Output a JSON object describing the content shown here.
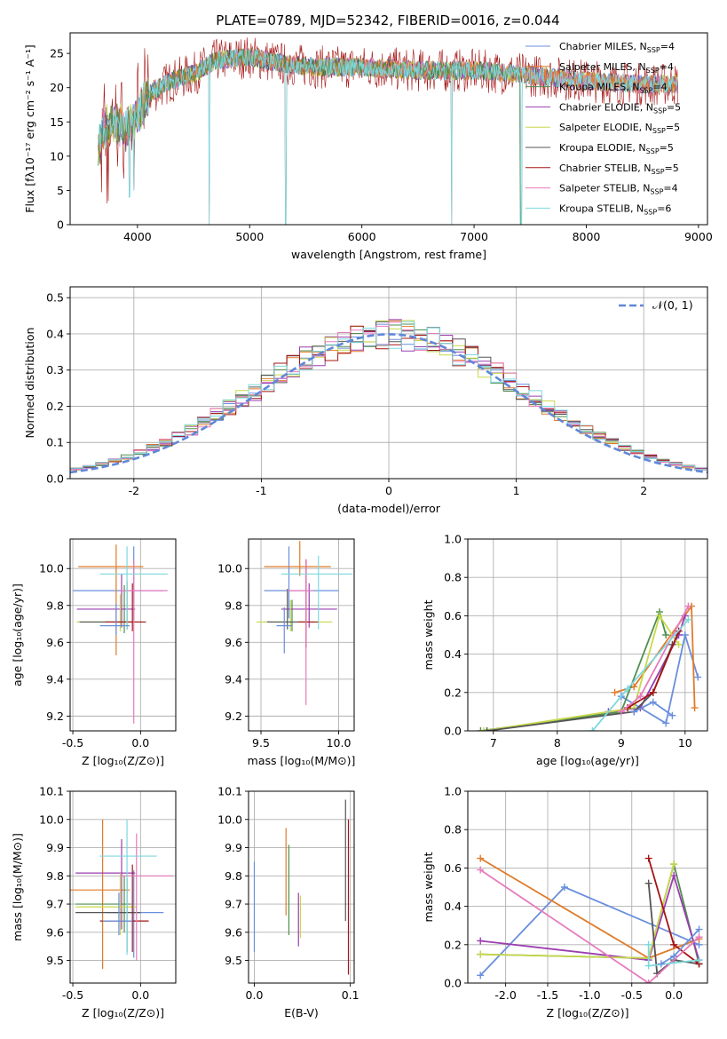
{
  "colors": {
    "c1": "#6a8fdc",
    "c2": "#e07b2a",
    "c3": "#4f8f4f",
    "c4": "#9b3db0",
    "c5": "#c9d84a",
    "c6": "#555555",
    "c7": "#a51414",
    "c8": "#e67bbd",
    "c9": "#7dd8de",
    "grid": "#b0b0b0",
    "norm": "#5f88d8"
  },
  "chart_data": [
    {
      "type": "line",
      "title": "PLATE=0789, MJD=52342, FIBERID=0016, z=0.044",
      "xlabel": "wavelength [Angstrom, rest frame]",
      "ylabel": "Flux [fλ10⁻¹⁷ erg cm⁻² s⁻¹ A⁻¹]",
      "xlim": [
        3400,
        9080
      ],
      "ylim": [
        0,
        28
      ],
      "xticks": [
        4000,
        5000,
        6000,
        7000,
        8000,
        9000
      ],
      "yticks": [
        0,
        5,
        10,
        15,
        20,
        25
      ],
      "grid": false,
      "legend_position": "right",
      "series": [
        {
          "name": "Chabrier MILES, N_SSP=4"
        },
        {
          "name": "Salpeter MILES, N_SSP=4"
        },
        {
          "name": "Kroupa MILES, N_SSP=4"
        },
        {
          "name": "Chabrier ELODIE, N_SSP=5"
        },
        {
          "name": "Salpeter ELODIE, N_SSP=5"
        },
        {
          "name": "Kroupa ELODIE, N_SSP=5"
        },
        {
          "name": "Chabrier STELIB, N_SSP=5"
        },
        {
          "name": "Salpeter STELIB, N_SSP=4"
        },
        {
          "name": "Kroupa STELIB, N_SSP=6"
        }
      ],
      "continuum": [
        [
          3650,
          11
        ],
        [
          3700,
          14
        ],
        [
          3800,
          15
        ],
        [
          3900,
          14
        ],
        [
          4000,
          16
        ],
        [
          4100,
          19
        ],
        [
          4300,
          21
        ],
        [
          4500,
          22
        ],
        [
          4700,
          24
        ],
        [
          5000,
          24.5
        ],
        [
          5300,
          23.5
        ],
        [
          5600,
          23
        ],
        [
          6000,
          23
        ],
        [
          6500,
          22.5
        ],
        [
          7000,
          22.5
        ],
        [
          7400,
          22
        ],
        [
          7700,
          21.5
        ],
        [
          8000,
          21
        ],
        [
          8500,
          20.5
        ],
        [
          8820,
          20.5
        ]
      ],
      "dips": [
        [
          3930,
          4
        ],
        [
          3968,
          5
        ],
        [
          4640,
          0
        ],
        [
          5320,
          0
        ],
        [
          6800,
          0
        ],
        [
          7420,
          0
        ]
      ]
    },
    {
      "type": "line",
      "title": "",
      "xlabel": "(data-model)/error",
      "ylabel": "Normed distribution",
      "xlim": [
        -2.5,
        2.5
      ],
      "ylim": [
        0,
        0.53
      ],
      "xticks": [
        -2,
        -1,
        0,
        1,
        2
      ],
      "yticks": [
        0.0,
        0.1,
        0.2,
        0.3,
        0.4,
        0.5
      ],
      "grid": true,
      "legend": [
        "𝒩(0, 1)"
      ],
      "legend_position": "top-right"
    },
    {
      "type": "scatter",
      "xlabel": "Z [log₁₀(Z/Z⊙)]",
      "ylabel": "age  [log₁₀(age/yr)]",
      "xlim": [
        -0.52,
        0.26
      ],
      "ylim": [
        9.12,
        10.16
      ],
      "xticks": [
        -0.5,
        0.0
      ],
      "yticks": [
        9.2,
        9.4,
        9.6,
        9.8,
        10.0
      ],
      "grid": true,
      "points": [
        {
          "x": -0.05,
          "y": 9.88,
          "xerr": [
            0.45,
            0.22
          ],
          "yerr": [
            0.16,
            0.24
          ]
        },
        {
          "x": -0.18,
          "y": 10.01,
          "xerr": [
            0.28,
            0.2
          ],
          "yerr": [
            0.48,
            0.12
          ]
        },
        {
          "x": -0.12,
          "y": 9.71,
          "xerr": [
            0.35,
            0.05
          ],
          "yerr": [
            0.06,
            0.2
          ]
        },
        {
          "x": -0.14,
          "y": 9.78,
          "xerr": [
            0.33,
            0.1
          ],
          "yerr": [
            0.1,
            0.19
          ]
        },
        {
          "x": -0.15,
          "y": 9.71,
          "xerr": [
            0.32,
            0.12
          ],
          "yerr": [
            0.05,
            0.15
          ]
        },
        {
          "x": -0.1,
          "y": 9.71,
          "xerr": [
            0.35,
            0.12
          ],
          "yerr": [
            0.04,
            0.22
          ]
        },
        {
          "x": -0.06,
          "y": 9.71,
          "xerr": [
            0.2,
            0.1
          ],
          "yerr": [
            0.05,
            0.21
          ]
        },
        {
          "x": -0.05,
          "y": 9.88,
          "xerr": [
            0.1,
            0.25
          ],
          "yerr": [
            0.72,
            0.17
          ]
        },
        {
          "x": -0.1,
          "y": 9.97,
          "xerr": [
            0.2,
            0.3
          ],
          "yerr": [
            0.3,
            0.15
          ]
        },
        {
          "x": -0.18,
          "y": 9.69,
          "xerr": [
            0.12,
            0.1
          ],
          "yerr": [
            0.05,
            0.12
          ]
        }
      ]
    },
    {
      "type": "scatter",
      "xlabel": "mass [log₁₀(M/M⊙)]",
      "ylabel": "",
      "xlim": [
        9.42,
        10.1
      ],
      "ylim": [
        9.12,
        10.16
      ],
      "xticks": [
        9.5,
        10.0
      ],
      "yticks": [
        9.2,
        9.4,
        9.6,
        9.8,
        10.0
      ],
      "grid": true,
      "points": [
        {
          "x": 9.68,
          "y": 9.88,
          "xerr": [
            0.16,
            0.32
          ],
          "yerr": [
            0.15,
            0.24
          ]
        },
        {
          "x": 9.75,
          "y": 10.01,
          "xerr": [
            0.23,
            0.2
          ],
          "yerr": [
            0.05,
            0.14
          ]
        },
        {
          "x": 9.7,
          "y": 9.71,
          "xerr": [
            0.18,
            0.15
          ],
          "yerr": [
            0.05,
            0.12
          ]
        },
        {
          "x": 9.81,
          "y": 9.78,
          "xerr": [
            0.18,
            0.18
          ],
          "yerr": [
            0.1,
            0.14
          ]
        },
        {
          "x": 9.69,
          "y": 9.71,
          "xerr": [
            0.22,
            0.27
          ],
          "yerr": [
            0.05,
            0.12
          ]
        },
        {
          "x": 9.67,
          "y": 9.71,
          "xerr": [
            0.13,
            0.13
          ],
          "yerr": [
            0.04,
            0.18
          ]
        },
        {
          "x": 9.79,
          "y": 9.71,
          "xerr": [
            0.05,
            0.08
          ],
          "yerr": [
            0.14,
            0.34
          ]
        },
        {
          "x": 9.79,
          "y": 9.88,
          "xerr": [
            0.12,
            0.05
          ],
          "yerr": [
            0.62,
            0.17
          ]
        },
        {
          "x": 9.87,
          "y": 9.97,
          "xerr": [
            0.24,
            0.22
          ],
          "yerr": [
            0.3,
            0.1
          ]
        },
        {
          "x": 9.65,
          "y": 9.69,
          "xerr": [
            0.05,
            0.05
          ],
          "yerr": [
            0.15,
            0.1
          ]
        }
      ]
    },
    {
      "type": "line",
      "xlabel": "age  [log₁₀(age/yr)]",
      "ylabel": "mass weight",
      "xlim": [
        6.6,
        10.35
      ],
      "ylim": [
        0,
        1.0
      ],
      "xticks": [
        7,
        8,
        9,
        10
      ],
      "yticks": [
        0.0,
        0.2,
        0.4,
        0.6,
        0.8,
        1.0
      ],
      "grid": true,
      "series": [
        {
          "points": [
            [
              9.0,
              0.18
            ],
            [
              9.7,
              0.04
            ],
            [
              10.0,
              0.5
            ],
            [
              10.2,
              0.28
            ]
          ]
        },
        {
          "points": [
            [
              8.9,
              0.2
            ],
            [
              9.2,
              0.23
            ],
            [
              10.1,
              0.65
            ],
            [
              10.15,
              0.12
            ]
          ]
        },
        {
          "points": [
            [
              6.8,
              0.0
            ],
            [
              9.0,
              0.1
            ],
            [
              9.6,
              0.62
            ],
            [
              9.7,
              0.5
            ]
          ]
        },
        {
          "points": [
            [
              8.8,
              0.1
            ],
            [
              9.3,
              0.12
            ],
            [
              9.9,
              0.5
            ],
            [
              10.0,
              0.6
            ]
          ]
        },
        {
          "points": [
            [
              6.85,
              0.0
            ],
            [
              9.2,
              0.12
            ],
            [
              9.6,
              0.6
            ],
            [
              9.9,
              0.45
            ]
          ]
        },
        {
          "points": [
            [
              6.9,
              0.0
            ],
            [
              9.2,
              0.1
            ],
            [
              9.5,
              0.2
            ],
            [
              9.8,
              0.45
            ]
          ]
        },
        {
          "points": [
            [
              9.1,
              0.12
            ],
            [
              9.5,
              0.2
            ],
            [
              9.9,
              0.52
            ]
          ]
        },
        {
          "points": [
            [
              9.0,
              0.1
            ],
            [
              9.3,
              0.18
            ],
            [
              10.05,
              0.65
            ]
          ]
        },
        {
          "points": [
            [
              8.55,
              0.0
            ],
            [
              9.1,
              0.22
            ],
            [
              10.05,
              0.58
            ]
          ]
        },
        {
          "points": [
            [
              9.2,
              0.1
            ],
            [
              9.5,
              0.15
            ],
            [
              9.8,
              0.08
            ]
          ]
        }
      ]
    },
    {
      "type": "scatter",
      "xlabel": "Z [log₁₀(Z/Z⊙)]",
      "ylabel": "mass [log₁₀(M/M⊙)]",
      "xlim": [
        -0.52,
        0.26
      ],
      "ylim": [
        9.42,
        10.1
      ],
      "xticks": [
        -0.5,
        0.0
      ],
      "yticks": [
        9.5,
        9.6,
        9.7,
        9.8,
        9.9,
        10.0,
        10.1
      ],
      "grid": true,
      "points": [
        {
          "x": -0.05,
          "y": 9.67,
          "xerr": [
            0.2,
            0.22
          ],
          "yerr": [
            0.16,
            0.15
          ]
        },
        {
          "x": -0.28,
          "y": 9.75,
          "xerr": [
            0.25,
            0.2
          ],
          "yerr": [
            0.28,
            0.25
          ]
        },
        {
          "x": -0.12,
          "y": 9.7,
          "xerr": [
            0.36,
            0.05
          ],
          "yerr": [
            0.1,
            0.1
          ]
        },
        {
          "x": -0.14,
          "y": 9.81,
          "xerr": [
            0.34,
            0.1
          ],
          "yerr": [
            0.2,
            0.12
          ]
        },
        {
          "x": -0.15,
          "y": 9.69,
          "xerr": [
            0.33,
            0.12
          ],
          "yerr": [
            0.1,
            0.12
          ]
        },
        {
          "x": -0.1,
          "y": 9.67,
          "xerr": [
            0.38,
            0.1
          ],
          "yerr": [
            0.14,
            0.12
          ]
        },
        {
          "x": -0.06,
          "y": 9.64,
          "xerr": [
            0.24,
            0.12
          ],
          "yerr": [
            0.11,
            0.2
          ]
        },
        {
          "x": -0.03,
          "y": 9.8,
          "xerr": [
            0.12,
            0.27
          ],
          "yerr": [
            0.3,
            0.15
          ]
        },
        {
          "x": -0.1,
          "y": 9.87,
          "xerr": [
            0.2,
            0.22
          ],
          "yerr": [
            0.35,
            0.13
          ]
        },
        {
          "x": -0.16,
          "y": 9.64,
          "xerr": [
            0.12,
            0.1
          ],
          "yerr": [
            0.05,
            0.1
          ]
        }
      ]
    },
    {
      "type": "scatter",
      "xlabel": "E(B-V)",
      "ylabel": "",
      "xlim": [
        -0.006,
        0.104
      ],
      "ylim": [
        9.42,
        10.1
      ],
      "xticks": [
        0.0,
        0.1
      ],
      "yticks": [
        9.5,
        9.6,
        9.7,
        9.8,
        9.9,
        10.0,
        10.1
      ],
      "grid": true,
      "points": [
        {
          "x": 0.0,
          "y": 9.69,
          "yerr": [
            0.16,
            0.16
          ]
        },
        {
          "x": 0.033,
          "y": 9.81,
          "yerr": [
            0.15,
            0.16
          ]
        },
        {
          "x": 0.036,
          "y": 9.75,
          "yerr": [
            0.16,
            0.16
          ]
        },
        {
          "x": 0.046,
          "y": 9.64,
          "yerr": [
            0.09,
            0.1
          ]
        },
        {
          "x": 0.048,
          "y": 9.65,
          "yerr": [
            0.07,
            0.08
          ]
        },
        {
          "x": 0.095,
          "y": 9.85,
          "yerr": [
            0.21,
            0.22
          ]
        },
        {
          "x": 0.098,
          "y": 9.72,
          "yerr": [
            0.27,
            0.28
          ]
        }
      ]
    },
    {
      "type": "line",
      "xlabel": "Z [log₁₀(Z/Z⊙)]",
      "ylabel": "mass weight",
      "xlim": [
        -2.45,
        0.4
      ],
      "ylim": [
        0,
        1.0
      ],
      "xticks": [
        -2.0,
        -1.5,
        -1.0,
        -0.5,
        0.0
      ],
      "yticks": [
        0.0,
        0.2,
        0.4,
        0.6,
        0.8,
        1.0
      ],
      "grid": true,
      "series": [
        {
          "points": [
            [
              -2.3,
              0.04
            ],
            [
              -1.3,
              0.5
            ],
            [
              0.3,
              0.2
            ]
          ]
        },
        {
          "points": [
            [
              -2.3,
              0.65
            ],
            [
              -0.3,
              0.13
            ],
            [
              0.3,
              0.23
            ]
          ]
        },
        {
          "points": [
            [
              -2.3,
              0.15
            ],
            [
              -0.3,
              0.13
            ],
            [
              0.0,
              0.62
            ],
            [
              0.3,
              0.1
            ]
          ]
        },
        {
          "points": [
            [
              -2.3,
              0.22
            ],
            [
              -0.3,
              0.12
            ],
            [
              0.0,
              0.56
            ],
            [
              0.3,
              0.12
            ]
          ]
        },
        {
          "points": [
            [
              -2.3,
              0.15
            ],
            [
              -0.3,
              0.13
            ],
            [
              0.0,
              0.62
            ]
          ]
        },
        {
          "points": [
            [
              -0.3,
              0.52
            ],
            [
              -0.2,
              0.05
            ],
            [
              0.0,
              0.12
            ],
            [
              0.3,
              0.1
            ]
          ]
        },
        {
          "points": [
            [
              -0.3,
              0.65
            ],
            [
              0.0,
              0.2
            ],
            [
              0.3,
              0.1
            ]
          ]
        },
        {
          "points": [
            [
              -2.3,
              0.59
            ],
            [
              -0.3,
              0.0
            ],
            [
              0.3,
              0.24
            ]
          ]
        },
        {
          "points": [
            [
              -0.3,
              0.2
            ],
            [
              -0.3,
              0.09
            ],
            [
              0.3,
              0.12
            ]
          ]
        },
        {
          "points": [
            [
              -0.15,
              0.1
            ],
            [
              0.0,
              0.14
            ],
            [
              0.3,
              0.28
            ]
          ]
        }
      ]
    }
  ]
}
